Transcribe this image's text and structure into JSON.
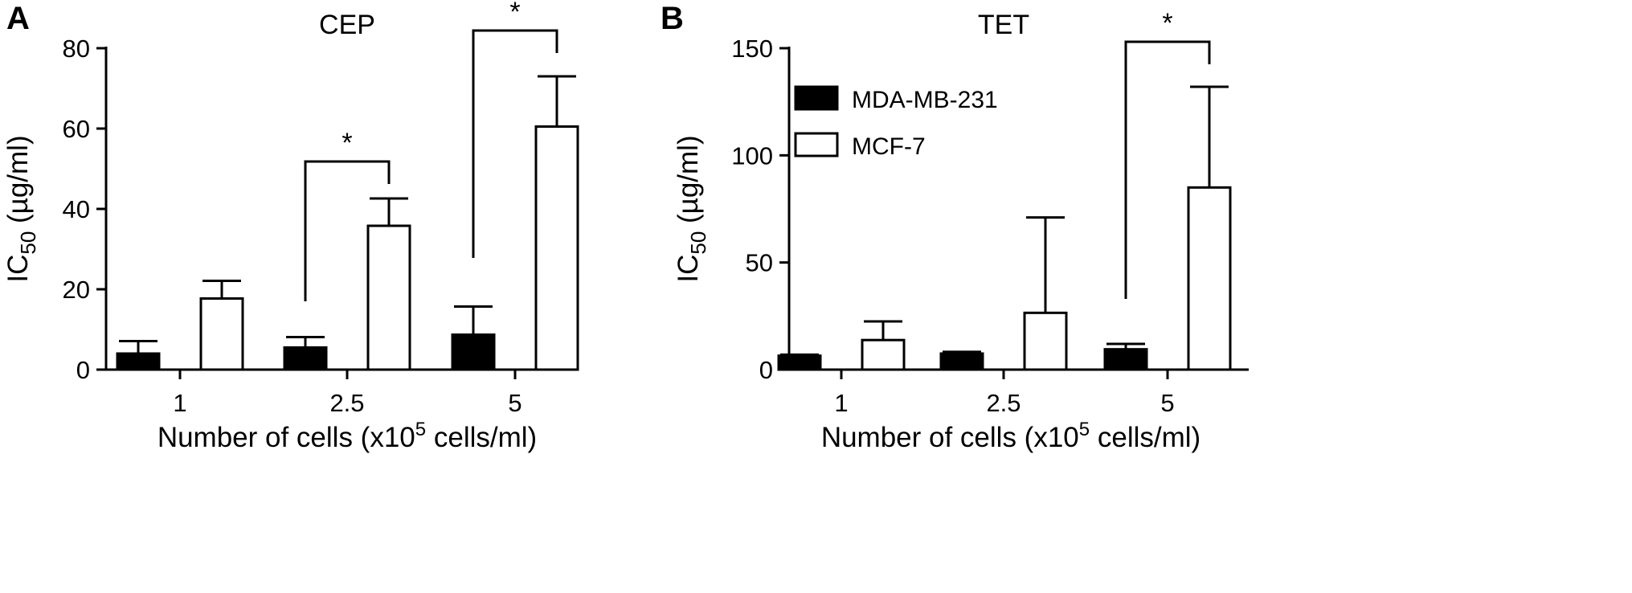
{
  "chart_data": [
    {
      "panel": "A",
      "type": "bar",
      "title": "CEP",
      "categories": [
        "1",
        "2.5",
        "5"
      ],
      "ylabel": "IC",
      "ylabel_sub": "50",
      "ylabel_unit": " (µg/ml)",
      "xlabel_pre": "Number of cells (x10",
      "xlabel_sup": "5",
      "xlabel_post": " cells/ml)",
      "ylim": [
        0,
        80
      ],
      "yticks": [
        "0",
        "20",
        "40",
        "60",
        "80"
      ],
      "series": [
        {
          "name": "MDA-MB-231",
          "fill": "#000000",
          "values": [
            4,
            5.5,
            8.7
          ],
          "errors": [
            3.1,
            2.6,
            7
          ]
        },
        {
          "name": "MCF-7",
          "fill": "#ffffff",
          "values": [
            17.7,
            35.8,
            60.5
          ],
          "errors": [
            4.4,
            6.8,
            12.5
          ]
        }
      ],
      "significance": [
        {
          "category": "2.5",
          "label": "*"
        },
        {
          "category": "5",
          "label": "*"
        }
      ]
    },
    {
      "panel": "B",
      "type": "bar",
      "title": "TET",
      "categories": [
        "1",
        "2.5",
        "5"
      ],
      "ylabel": "IC",
      "ylabel_sub": "50",
      "ylabel_unit": " (µg/ml)",
      "xlabel_pre": "Number of cells (x10",
      "xlabel_sup": "5",
      "xlabel_post": " cells/ml)",
      "ylim": [
        0,
        150
      ],
      "yticks": [
        "0",
        "50",
        "100",
        "150"
      ],
      "legend": {
        "placement": "top-left",
        "entries": [
          "MDA-MB-231",
          "MCF-7"
        ]
      },
      "series": [
        {
          "name": "MDA-MB-231",
          "fill": "#000000",
          "values": [
            6.5,
            7.5,
            9.5
          ],
          "errors": [
            0.5,
            0.8,
            2.5
          ]
        },
        {
          "name": "MCF-7",
          "fill": "#ffffff",
          "values": [
            13.8,
            26.5,
            85
          ],
          "errors": [
            8.7,
            44.5,
            47
          ]
        }
      ],
      "significance": [
        {
          "category": "5",
          "label": "*"
        }
      ]
    }
  ]
}
